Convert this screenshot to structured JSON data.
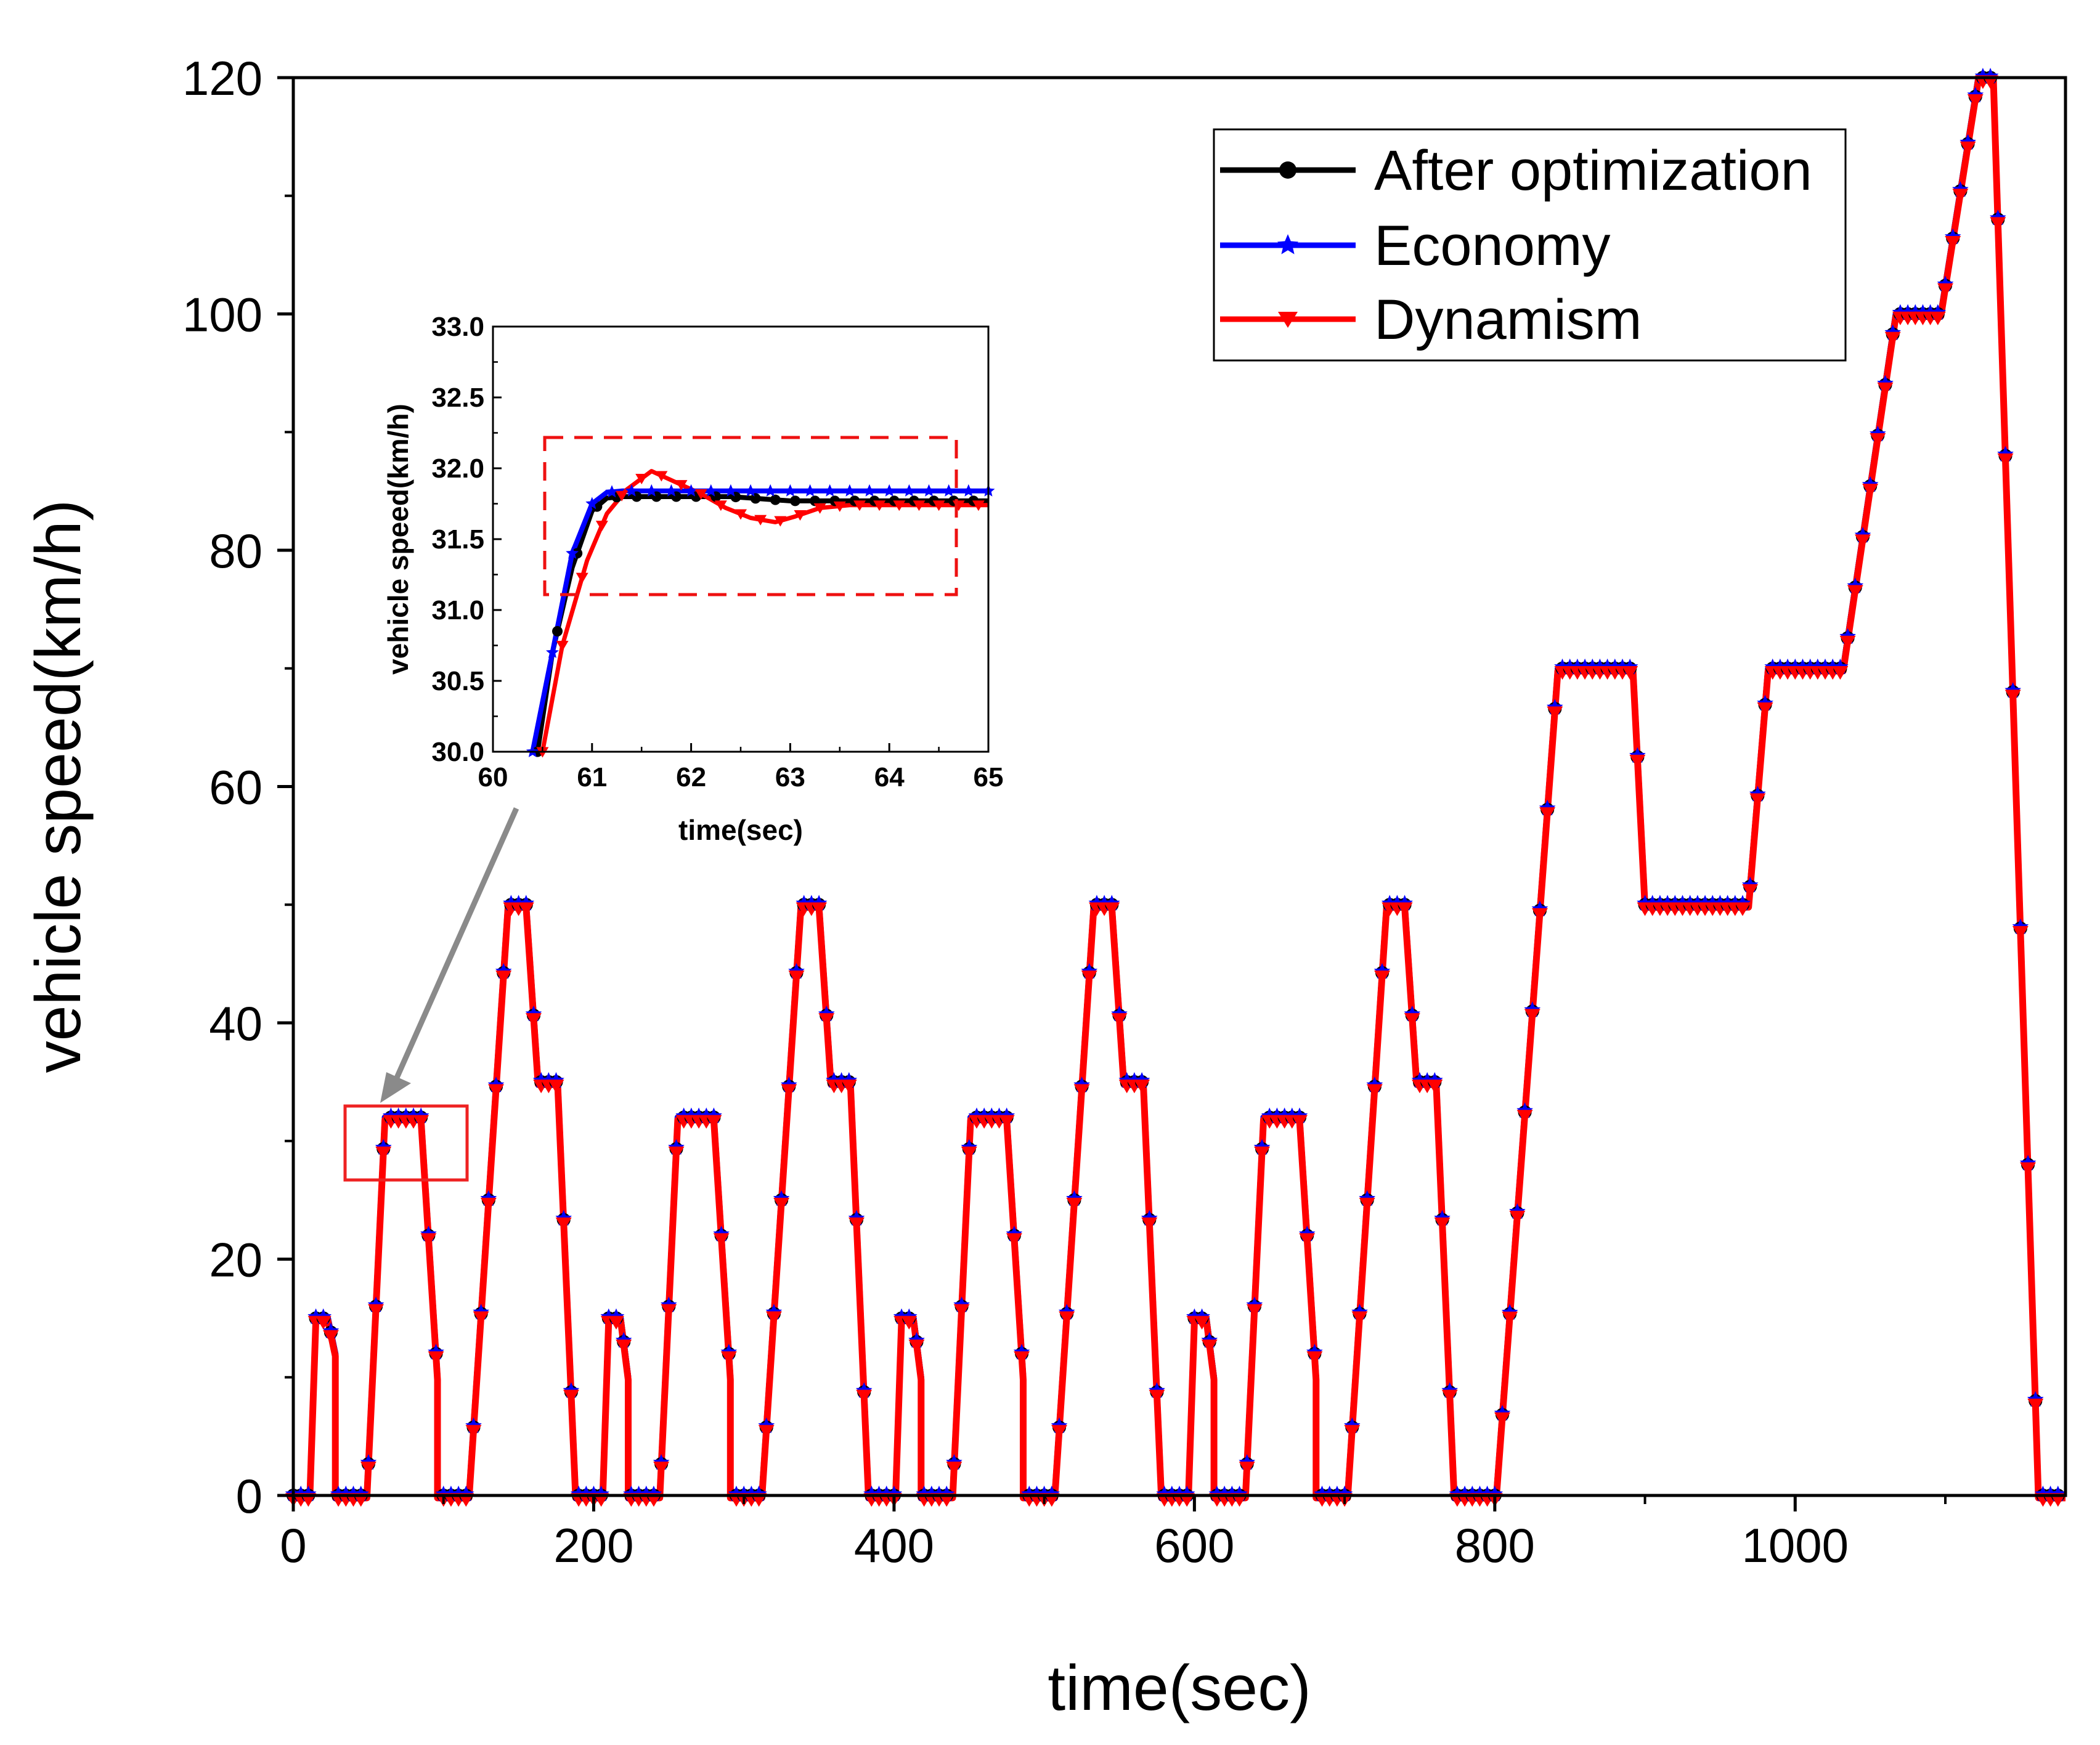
{
  "chart_data": [
    {
      "id": "main",
      "type": "line",
      "title": "",
      "xlabel": "time(sec)",
      "ylabel": "vehicle speed(km/h)",
      "xlim": [
        0,
        1180
      ],
      "ylim": [
        0,
        120
      ],
      "xticks": [
        0,
        200,
        400,
        600,
        800,
        1000
      ],
      "yticks": [
        0,
        20,
        40,
        60,
        80,
        100,
        120
      ],
      "grid": false,
      "legend_position": "top-right",
      "series": [
        {
          "name": "After optimization",
          "color": "#000000",
          "marker": "circle"
        },
        {
          "name": "Economy",
          "color": "#0000ff",
          "marker": "star"
        },
        {
          "name": "Dynamism",
          "color": "#ff0000",
          "marker": "triangle-down"
        }
      ],
      "profile": {
        "description": "time (sec), speed (km/h) points of the driving cycle; all three series coincide at this scale",
        "points": [
          [
            0,
            0
          ],
          [
            11,
            0
          ],
          [
            15,
            15
          ],
          [
            23,
            15
          ],
          [
            28,
            12
          ],
          [
            28,
            0
          ],
          [
            49,
            0
          ],
          [
            61,
            32
          ],
          [
            85,
            32
          ],
          [
            96,
            10
          ],
          [
            96,
            0
          ],
          [
            117,
            0
          ],
          [
            143,
            50
          ],
          [
            155,
            50
          ],
          [
            163,
            35
          ],
          [
            176,
            35
          ],
          [
            188,
            0
          ],
          [
            206,
            0
          ],
          [
            210,
            15
          ],
          [
            218,
            15
          ],
          [
            223,
            10
          ],
          [
            223,
            0
          ],
          [
            244,
            0
          ],
          [
            256,
            32
          ],
          [
            280,
            32
          ],
          [
            291,
            10
          ],
          [
            291,
            0
          ],
          [
            312,
            0
          ],
          [
            338,
            50
          ],
          [
            350,
            50
          ],
          [
            358,
            35
          ],
          [
            371,
            35
          ],
          [
            383,
            0
          ],
          [
            401,
            0
          ],
          [
            405,
            15
          ],
          [
            413,
            15
          ],
          [
            418,
            10
          ],
          [
            418,
            0
          ],
          [
            439,
            0
          ],
          [
            451,
            32
          ],
          [
            475,
            32
          ],
          [
            486,
            10
          ],
          [
            486,
            0
          ],
          [
            507,
            0
          ],
          [
            533,
            50
          ],
          [
            545,
            50
          ],
          [
            553,
            35
          ],
          [
            566,
            35
          ],
          [
            578,
            0
          ],
          [
            596,
            0
          ],
          [
            600,
            15
          ],
          [
            608,
            15
          ],
          [
            613,
            10
          ],
          [
            613,
            0
          ],
          [
            634,
            0
          ],
          [
            646,
            32
          ],
          [
            670,
            32
          ],
          [
            681,
            10
          ],
          [
            681,
            0
          ],
          [
            702,
            0
          ],
          [
            728,
            50
          ],
          [
            740,
            50
          ],
          [
            748,
            35
          ],
          [
            761,
            35
          ],
          [
            773,
            0
          ],
          [
            801,
            0
          ],
          [
            842,
            70
          ],
          [
            892,
            70
          ],
          [
            900,
            50
          ],
          [
            969,
            50
          ],
          [
            982,
            70
          ],
          [
            1032,
            70
          ],
          [
            1067,
            100
          ],
          [
            1097,
            100
          ],
          [
            1122,
            120
          ],
          [
            1132,
            120
          ],
          [
            1162,
            0
          ],
          [
            1180,
            0
          ]
        ]
      }
    },
    {
      "id": "inset",
      "type": "line",
      "title": "",
      "xlabel": "time(sec)",
      "ylabel": "vehicle speed(km/h)",
      "xlim": [
        60,
        65
      ],
      "ylim": [
        30.0,
        33.0
      ],
      "xticks": [
        "60",
        "61",
        "62",
        "63",
        "64",
        "65"
      ],
      "yticks": [
        "30.0",
        "30.5",
        "31.0",
        "31.5",
        "32.0",
        "32.5",
        "33.0"
      ],
      "grid": false,
      "series": [
        {
          "name": "After optimization",
          "color": "#000000",
          "marker": "circle",
          "x": [
            60.45,
            60.6,
            60.8,
            61.0,
            61.15,
            61.3,
            61.45,
            61.6,
            61.8,
            62.0,
            62.2,
            62.4,
            62.6,
            62.8,
            63.0,
            63.5,
            64.0,
            64.5,
            65.0
          ],
          "y": [
            30.0,
            30.7,
            31.3,
            31.7,
            31.79,
            31.8,
            31.8,
            31.8,
            31.8,
            31.8,
            31.8,
            31.8,
            31.79,
            31.78,
            31.77,
            31.77,
            31.77,
            31.77,
            31.77
          ]
        },
        {
          "name": "Economy",
          "color": "#0000ff",
          "marker": "star",
          "x": [
            60.4,
            60.6,
            60.8,
            61.0,
            61.15,
            61.3,
            61.5,
            62.0,
            62.5,
            63.0,
            63.5,
            64.0,
            64.5,
            65.0
          ],
          "y": [
            30.0,
            30.7,
            31.4,
            31.75,
            31.83,
            31.84,
            31.84,
            31.84,
            31.84,
            31.84,
            31.84,
            31.84,
            31.84,
            31.84
          ]
        },
        {
          "name": "Dynamism",
          "color": "#ff0000",
          "marker": "triangle-down",
          "x": [
            60.5,
            60.7,
            60.95,
            61.15,
            61.35,
            61.6,
            61.85,
            62.1,
            62.35,
            62.6,
            62.85,
            63.05,
            63.3,
            63.6,
            64.0,
            64.5,
            65.0
          ],
          "y": [
            30.0,
            30.75,
            31.35,
            31.68,
            31.85,
            31.98,
            31.9,
            31.82,
            31.72,
            31.65,
            31.62,
            31.66,
            31.72,
            31.74,
            31.74,
            31.74,
            31.74
          ]
        }
      ]
    }
  ]
}
